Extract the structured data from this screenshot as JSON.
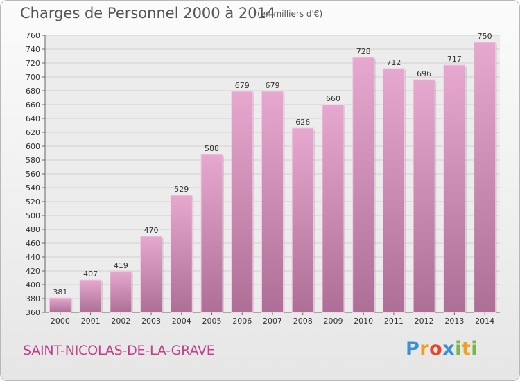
{
  "header": {
    "title": "Charges de Personnel 2000 à 2014",
    "subtitle": "(en milliers d'€)"
  },
  "footer": {
    "town": "SAINT-NICOLAS-DE-LA-GRAVE",
    "logo": "Proxiti"
  },
  "colors": {
    "bar_top": "#e6a8cf",
    "bar_bottom": "#ad6f96",
    "town_text": "#c0408a"
  },
  "chart_data": {
    "type": "bar",
    "title": "Charges de Personnel 2000 à 2014",
    "subtitle": "(en milliers d'€)",
    "categories": [
      "2000",
      "2001",
      "2002",
      "2003",
      "2004",
      "2005",
      "2006",
      "2007",
      "2008",
      "2009",
      "2010",
      "2011",
      "2012",
      "2013",
      "2014"
    ],
    "values": [
      381,
      407,
      419,
      470,
      529,
      588,
      679,
      679,
      626,
      660,
      728,
      712,
      696,
      717,
      750
    ],
    "ylim": [
      360,
      760
    ],
    "ytick_step": 20,
    "grid": true,
    "legend": false
  }
}
